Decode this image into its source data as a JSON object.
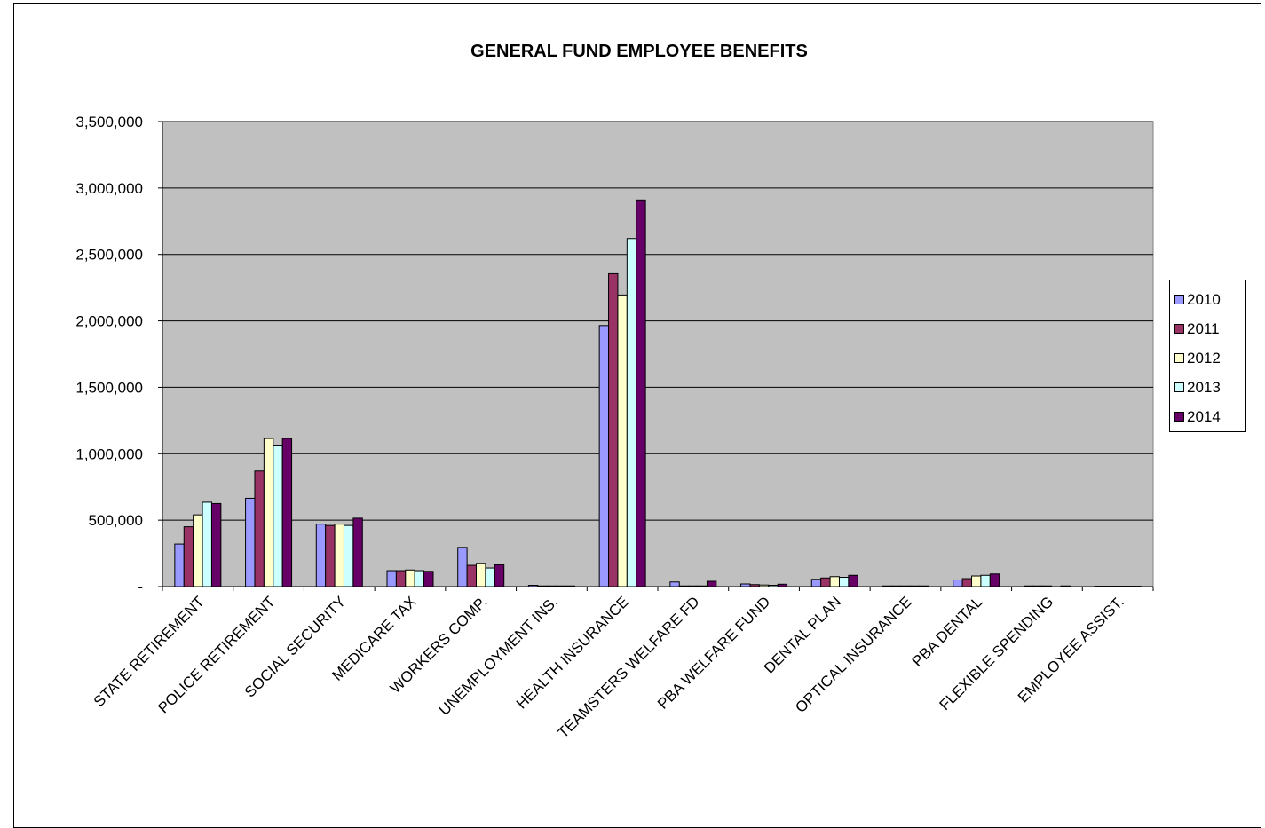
{
  "chart_data": {
    "type": "bar",
    "title": "GENERAL FUND EMPLOYEE BENEFITS",
    "xlabel": "",
    "ylabel": "",
    "ylim": [
      0,
      3500000
    ],
    "yticks": [
      0,
      500000,
      1000000,
      1500000,
      2000000,
      2500000,
      3000000,
      3500000
    ],
    "ytick_labels": [
      "-",
      "500,000",
      "1,000,000",
      "1,500,000",
      "2,000,000",
      "2,500,000",
      "3,000,000",
      "3,500,000"
    ],
    "grid": true,
    "legend_position": "right",
    "categories": [
      "STATE RETIREMENT",
      "POLICE RETIREMENT",
      "SOCIAL SECURITY",
      "MEDICARE TAX",
      "WORKERS COMP.",
      "UNEMPLOYMENT INS.",
      "HEALTH INSURANCE",
      "TEAMSTERS WELFARE FD",
      "PBA WELFARE FUND",
      "DENTAL PLAN",
      "OPTICAL INSURANCE",
      "PBA DENTAL",
      "FLEXIBLE SPENDING",
      "EMPLOYEE ASSIST."
    ],
    "series": [
      {
        "name": "2010",
        "color": "#9999ff",
        "values": [
          320000,
          665000,
          470000,
          120000,
          295000,
          10000,
          1965000,
          35000,
          20000,
          55000,
          5000,
          50000,
          5000,
          3000
        ]
      },
      {
        "name": "2011",
        "color": "#993366",
        "values": [
          450000,
          870000,
          460000,
          120000,
          160000,
          5000,
          2355000,
          5000,
          15000,
          65000,
          5000,
          60000,
          5000,
          3000
        ]
      },
      {
        "name": "2012",
        "color": "#ffffcc",
        "values": [
          540000,
          1115000,
          470000,
          125000,
          175000,
          5000,
          2195000,
          5000,
          12000,
          75000,
          5000,
          80000,
          5000,
          3000
        ]
      },
      {
        "name": "2013",
        "color": "#ccffff",
        "values": [
          635000,
          1065000,
          460000,
          120000,
          140000,
          5000,
          2620000,
          5000,
          10000,
          70000,
          5000,
          85000,
          0,
          3000
        ]
      },
      {
        "name": "2014",
        "color": "#660066",
        "values": [
          625000,
          1115000,
          515000,
          115000,
          165000,
          5000,
          2910000,
          40000,
          18000,
          85000,
          5000,
          95000,
          5000,
          3000
        ]
      }
    ]
  },
  "colors": {
    "plot_background": "#c0c0c0",
    "gridline": "#000000"
  }
}
